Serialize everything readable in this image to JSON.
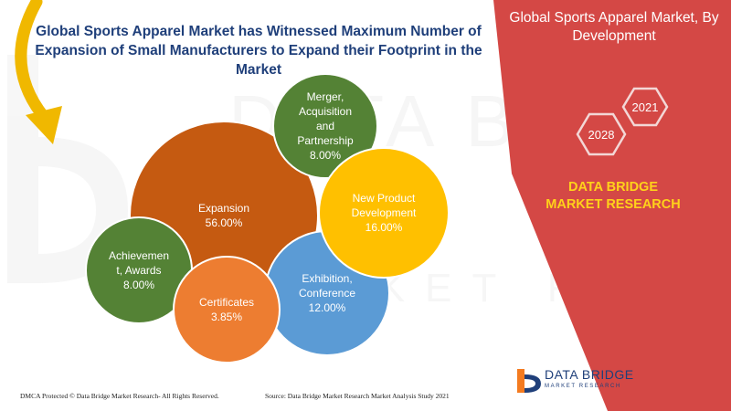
{
  "header": {
    "title": "Global Sports Apparel Market has Witnessed Maximum Number of Expansion of Small Manufacturers to Expand their Footprint in the Market"
  },
  "right_panel": {
    "title": "Global Sports Apparel Market, By Development",
    "year_start": "2021",
    "year_end": "2028",
    "brand_title": "DATA BRIDGE MARKET RESEARCH",
    "background_color": "#d44845",
    "accent_color": "#ffd21a"
  },
  "chart_data": {
    "type": "bubble",
    "title": "",
    "series": [
      {
        "name": "Expansion",
        "label_lines": [
          "Expansion"
        ],
        "value": 56.0,
        "display": "56.00%",
        "color": "#c55a11"
      },
      {
        "name": "Merger, Acquisition and Partnership",
        "label_lines": [
          "Merger,",
          "Acquisition",
          "and",
          "Partnership"
        ],
        "value": 8.0,
        "display": "8.00%",
        "color": "#548235"
      },
      {
        "name": "New Product Development",
        "label_lines": [
          "New Product",
          "Development"
        ],
        "value": 16.0,
        "display": "16.00%",
        "color": "#ffc000"
      },
      {
        "name": "Exhibition, Conference",
        "label_lines": [
          "Exhibition,",
          "Conference"
        ],
        "value": 12.0,
        "display": "12.00%",
        "color": "#5b9bd5"
      },
      {
        "name": "Certificates",
        "label_lines": [
          "Certificates"
        ],
        "value": 3.85,
        "display": "3.85%",
        "color": "#ed7d31"
      },
      {
        "name": "Achievement, Awards",
        "label_lines": [
          "Achievemen",
          "t, Awards"
        ],
        "value": 8.0,
        "display": "8.00%",
        "color": "#548235"
      }
    ]
  },
  "footer": {
    "left": "DMCA Protected © Data Bridge Market Research- All Rights Reserved.",
    "source": "Source: Data Bridge Market Research Market Analysis Study 2021"
  },
  "logo": {
    "name": "DATA BRIDGE",
    "tagline": "MARKET RESEARCH"
  },
  "icons": [
    "curved-arrow-icon",
    "hexagon-icon",
    "data-bridge-logo-icon"
  ]
}
